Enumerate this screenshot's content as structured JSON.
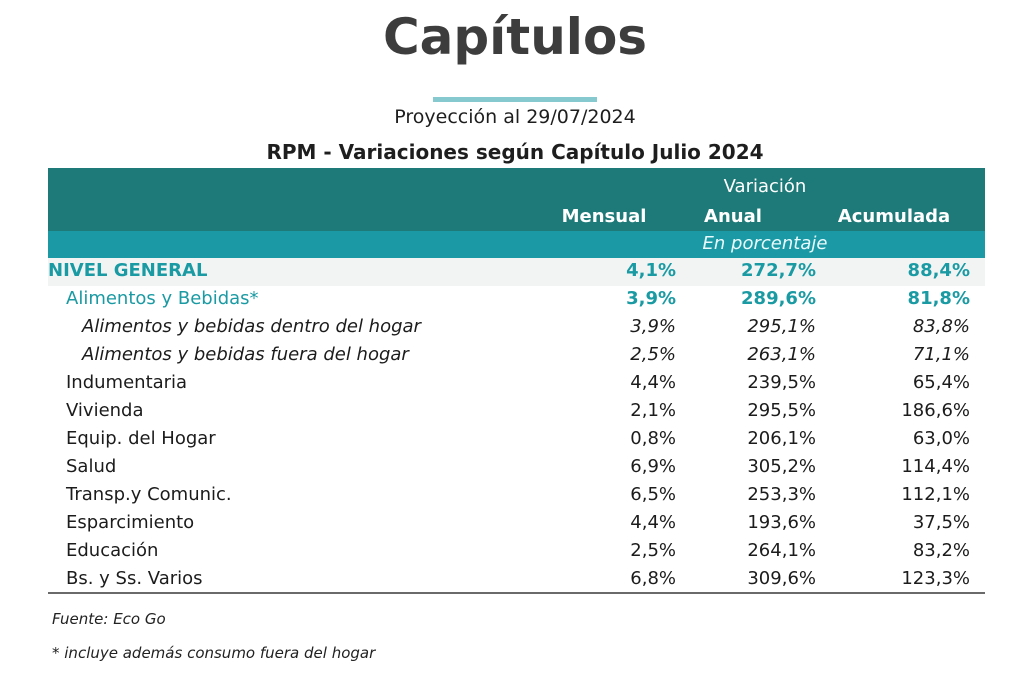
{
  "title": "Capítulos",
  "subtitle": "Proyección al 29/07/2024",
  "table_title": "RPM - Variaciones según Capítulo Julio 2024",
  "header": {
    "group": "Variación",
    "col_mensual": "Mensual",
    "col_anual": "Anual",
    "col_acumulada": "Acumulada",
    "unit": "En porcentaje"
  },
  "colors": {
    "header_dark": "#1e7a78",
    "header_light": "#1b9aa6",
    "accent_text": "#1a9aa3",
    "rule": "#86c9cf"
  },
  "rows": [
    {
      "label": "NIVEL GENERAL",
      "mensual": "4,1%",
      "anual": "272,7%",
      "acumulada": "88,4%"
    },
    {
      "label": "Alimentos y Bebidas*",
      "mensual": "3,9%",
      "anual": "289,6%",
      "acumulada": "81,8%"
    },
    {
      "label": "Alimentos y bebidas dentro del hogar",
      "mensual": "3,9%",
      "anual": "295,1%",
      "acumulada": "83,8%"
    },
    {
      "label": "Alimentos y bebidas fuera del hogar",
      "mensual": "2,5%",
      "anual": "263,1%",
      "acumulada": "71,1%"
    },
    {
      "label": "Indumentaria",
      "mensual": "4,4%",
      "anual": "239,5%",
      "acumulada": "65,4%"
    },
    {
      "label": "Vivienda",
      "mensual": "2,1%",
      "anual": "295,5%",
      "acumulada": "186,6%"
    },
    {
      "label": "Equip. del Hogar",
      "mensual": "0,8%",
      "anual": "206,1%",
      "acumulada": "63,0%"
    },
    {
      "label": "Salud",
      "mensual": "6,9%",
      "anual": "305,2%",
      "acumulada": "114,4%"
    },
    {
      "label": "Transp.y Comunic.",
      "mensual": "6,5%",
      "anual": "253,3%",
      "acumulada": "112,1%"
    },
    {
      "label": "Esparcimiento",
      "mensual": "4,4%",
      "anual": "193,6%",
      "acumulada": "37,5%"
    },
    {
      "label": "Educación",
      "mensual": "2,5%",
      "anual": "264,1%",
      "acumulada": "83,2%"
    },
    {
      "label": "Bs. y Ss. Varios",
      "mensual": "6,8%",
      "anual": "309,6%",
      "acumulada": "123,3%"
    }
  ],
  "footnotes": {
    "source": "Fuente: Eco Go",
    "note": "* incluye además consumo fuera del hogar"
  }
}
